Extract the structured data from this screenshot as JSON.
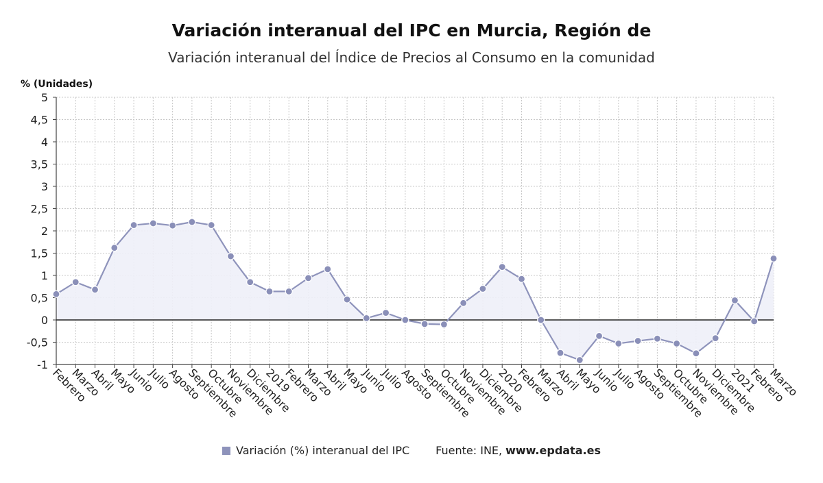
{
  "chart_data": {
    "type": "line",
    "title": "Variación interanual del IPC en Murcia, Región de",
    "subtitle": "Variación interanual del Índice de Precios al Consumo en la comunidad",
    "ylabel": "% (Unidades)",
    "xlabel": "",
    "ylim": [
      -1,
      5
    ],
    "yticks": [
      {
        "v": -1,
        "label": "-1"
      },
      {
        "v": -0.5,
        "label": "-0,5"
      },
      {
        "v": 0,
        "label": "0"
      },
      {
        "v": 0.5,
        "label": "0,5"
      },
      {
        "v": 1,
        "label": "1"
      },
      {
        "v": 1.5,
        "label": "1,5"
      },
      {
        "v": 2,
        "label": "2"
      },
      {
        "v": 2.5,
        "label": "2,5"
      },
      {
        "v": 3,
        "label": "3"
      },
      {
        "v": 3.5,
        "label": "3,5"
      },
      {
        "v": 4,
        "label": "4"
      },
      {
        "v": 4.5,
        "label": "4,5"
      },
      {
        "v": 5,
        "label": "5"
      }
    ],
    "grid": true,
    "legend_position": "bottom",
    "categories": [
      "Febrero",
      "Marzo",
      "Abril",
      "Mayo",
      "Junio",
      "Julio",
      "Agosto",
      "Septiembre",
      "Octubre",
      "Noviembre",
      "Diciembre",
      "2019",
      "Febrero",
      "Marzo",
      "Abril",
      "Mayo",
      "Junio",
      "Julio",
      "Agosto",
      "Septiembre",
      "Octubre",
      "Noviembre",
      "Diciembre",
      "2020",
      "Febrero",
      "Marzo",
      "Abril",
      "Mayo",
      "Junio",
      "Julio",
      "Agosto",
      "Septiembre",
      "Octubre",
      "Noviembre",
      "Diciembre",
      "2021",
      "Febrero",
      "Marzo"
    ],
    "series": [
      {
        "name": "Variación (%) interanual del IPC",
        "values": [
          0.58,
          0.85,
          0.68,
          1.62,
          2.13,
          2.17,
          2.12,
          2.2,
          2.13,
          1.43,
          0.85,
          0.64,
          0.64,
          0.94,
          1.14,
          0.46,
          0.04,
          0.16,
          0.0,
          -0.09,
          -0.1,
          0.38,
          0.7,
          1.19,
          0.92,
          0.0,
          -0.74,
          -0.9,
          -0.36,
          -0.53,
          -0.47,
          -0.42,
          -0.53,
          -0.75,
          -0.41,
          0.44,
          -0.03,
          1.38
        ]
      }
    ]
  },
  "legend": {
    "series_label": "Variación (%) interanual del IPC",
    "source_label": "Fuente: INE,",
    "source_site": "www.epdata.es"
  },
  "colors": {
    "series": "#8e93bb",
    "marker": "#8a8fb8",
    "area": "#eef0f8",
    "zero_line": "#222222",
    "grid": "#c8c8c8"
  }
}
